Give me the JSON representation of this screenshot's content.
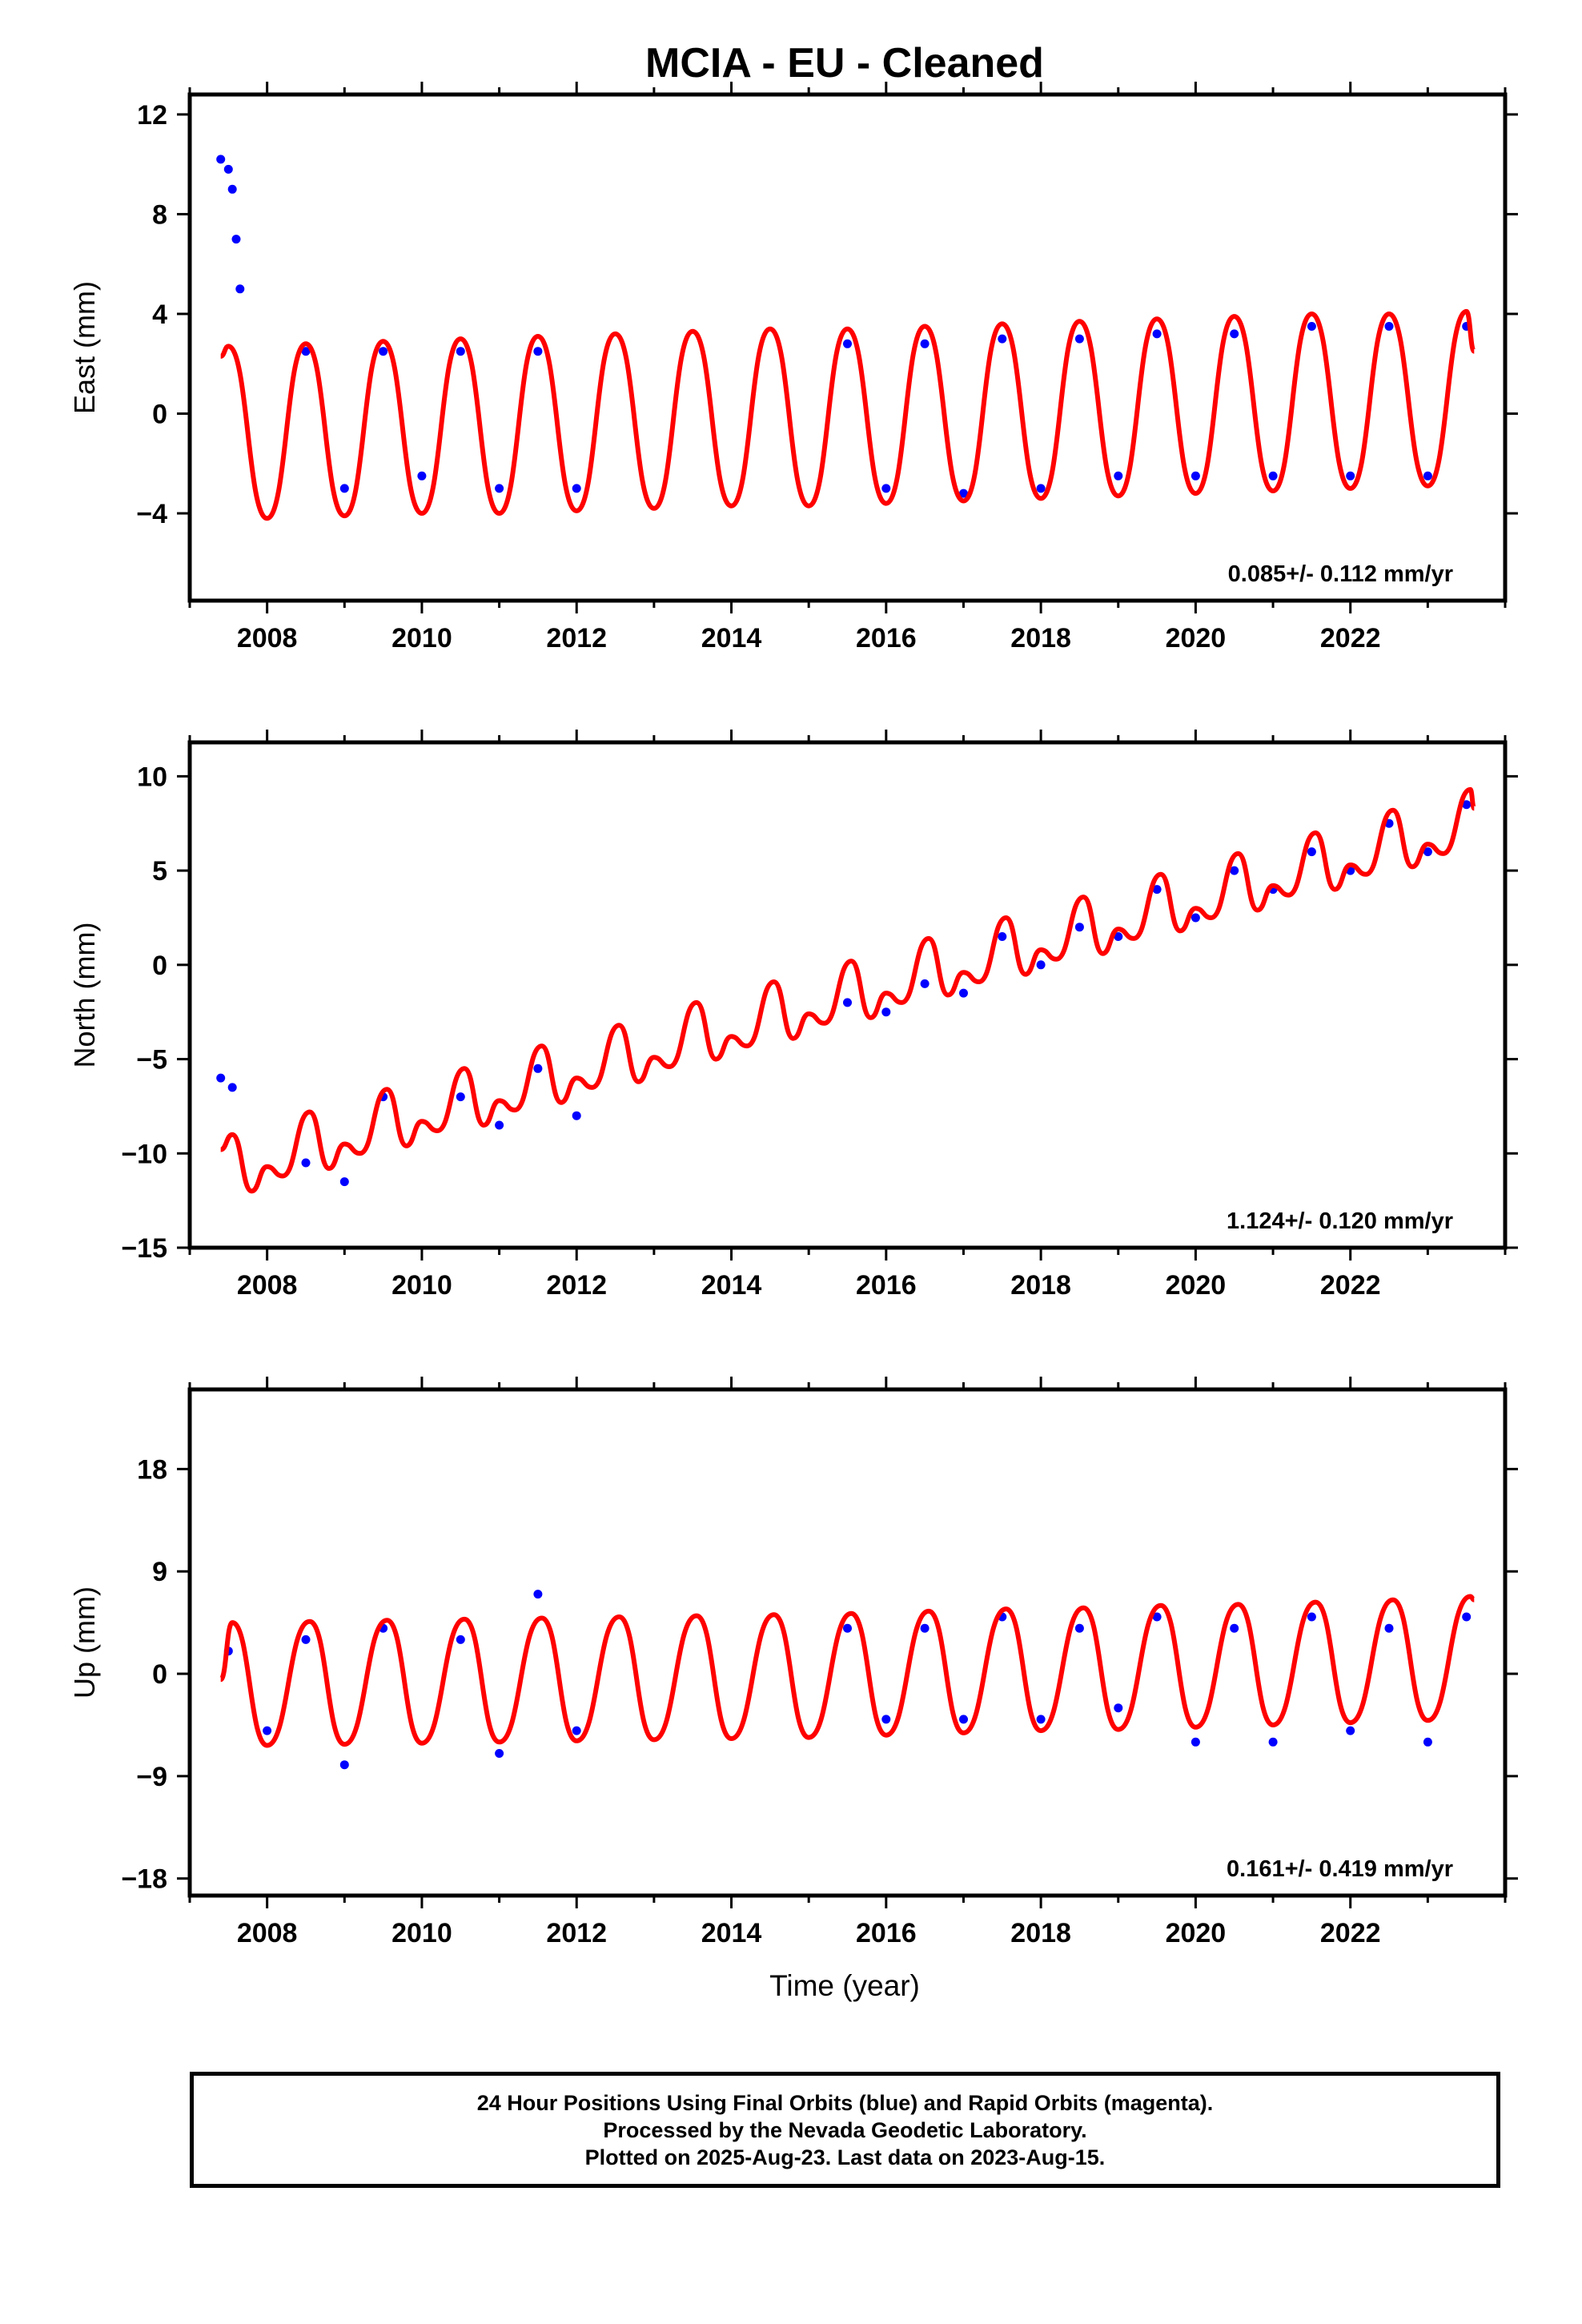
{
  "title": "MCIA  - EU - Cleaned",
  "xlabel": "Time (year)",
  "colors": {
    "data": "#0000ff",
    "model": "#ff0000",
    "frame": "#000000"
  },
  "footer": {
    "lines": [
      "24 Hour Positions Using Final Orbits (blue) and Rapid Orbits (magenta).",
      "Processed by the Nevada Geodetic Laboratory.",
      "Plotted on 2025-Aug-23. Last data on 2023-Aug-15."
    ]
  },
  "chart_data": [
    {
      "type": "scatter",
      "component": "east",
      "ylabel": "East (mm)",
      "xlim": [
        2007.0,
        2024.0
      ],
      "ylim": [
        -7.5,
        12.8
      ],
      "xticks": [
        2008,
        2010,
        2012,
        2014,
        2016,
        2018,
        2020,
        2022
      ],
      "yticks": [
        -4,
        0,
        4,
        8,
        12
      ],
      "yticklabels": [
        "−4",
        "0",
        "4",
        "8",
        "12"
      ],
      "rate_label": "0.085+/- 0.112 mm/yr",
      "series": [
        {
          "values": [
            [
              2007.4,
              10.2
            ],
            [
              2007.5,
              9.8
            ],
            [
              2007.55,
              9.0
            ],
            [
              2007.6,
              7.0
            ],
            [
              2007.65,
              5.0
            ],
            [
              2008.5,
              2.5
            ],
            [
              2009.0,
              -3.0
            ],
            [
              2009.5,
              2.5
            ],
            [
              2010.0,
              -2.5
            ],
            [
              2010.5,
              2.5
            ],
            [
              2011.0,
              -3.0
            ],
            [
              2011.5,
              2.5
            ],
            [
              2012.0,
              -3.0
            ],
            [
              2015.5,
              2.8
            ],
            [
              2016.0,
              -3.0
            ],
            [
              2016.5,
              2.8
            ],
            [
              2017.0,
              -3.2
            ],
            [
              2017.5,
              3.0
            ],
            [
              2018.0,
              -3.0
            ],
            [
              2018.5,
              3.0
            ],
            [
              2019.0,
              -2.5
            ],
            [
              2019.5,
              3.2
            ],
            [
              2020.0,
              -2.5
            ],
            [
              2020.5,
              3.2
            ],
            [
              2021.0,
              -2.5
            ],
            [
              2021.5,
              3.5
            ],
            [
              2022.0,
              -2.5
            ],
            [
              2022.5,
              3.5
            ],
            [
              2023.0,
              -2.5
            ],
            [
              2023.5,
              3.5
            ]
          ]
        },
        {
          "values": [
            [
              2007.4,
              2.3
            ],
            [
              2007.5,
              2.7
            ],
            [
              2008.0,
              -4.2
            ],
            [
              2008.5,
              2.8
            ],
            [
              2009.0,
              -4.1
            ],
            [
              2009.5,
              2.9
            ],
            [
              2010.0,
              -4.0
            ],
            [
              2010.5,
              3.0
            ],
            [
              2011.0,
              -4.0
            ],
            [
              2011.5,
              3.1
            ],
            [
              2012.0,
              -3.9
            ],
            [
              2012.5,
              3.2
            ],
            [
              2013.0,
              -3.8
            ],
            [
              2013.5,
              3.3
            ],
            [
              2014.0,
              -3.7
            ],
            [
              2014.5,
              3.4
            ],
            [
              2015.0,
              -3.7
            ],
            [
              2015.5,
              3.4
            ],
            [
              2016.0,
              -3.6
            ],
            [
              2016.5,
              3.5
            ],
            [
              2017.0,
              -3.5
            ],
            [
              2017.5,
              3.6
            ],
            [
              2018.0,
              -3.4
            ],
            [
              2018.5,
              3.7
            ],
            [
              2019.0,
              -3.3
            ],
            [
              2019.5,
              3.8
            ],
            [
              2020.0,
              -3.2
            ],
            [
              2020.5,
              3.9
            ],
            [
              2021.0,
              -3.1
            ],
            [
              2021.5,
              4.0
            ],
            [
              2022.0,
              -3.0
            ],
            [
              2022.5,
              4.0
            ],
            [
              2023.0,
              -2.9
            ],
            [
              2023.5,
              4.1
            ],
            [
              2023.6,
              2.5
            ]
          ]
        }
      ]
    },
    {
      "type": "scatter",
      "component": "north",
      "ylabel": "North (mm)",
      "xlim": [
        2007.0,
        2024.0
      ],
      "ylim": [
        -15,
        11.8
      ],
      "xticks": [
        2008,
        2010,
        2012,
        2014,
        2016,
        2018,
        2020,
        2022
      ],
      "yticks": [
        -15,
        -10,
        -5,
        0,
        5,
        10
      ],
      "yticklabels": [
        "−15",
        "−10",
        "−5",
        "0",
        "5",
        "10"
      ],
      "rate_label": "1.124+/- 0.120 mm/yr",
      "series": [
        {
          "values": [
            [
              2007.4,
              -6.0
            ],
            [
              2007.55,
              -6.5
            ],
            [
              2008.5,
              -10.5
            ],
            [
              2009.0,
              -11.5
            ],
            [
              2009.5,
              -7.0
            ],
            [
              2010.5,
              -7.0
            ],
            [
              2011.0,
              -8.5
            ],
            [
              2011.5,
              -5.5
            ],
            [
              2012.0,
              -8.0
            ],
            [
              2015.5,
              -2.0
            ],
            [
              2016.0,
              -2.5
            ],
            [
              2016.5,
              -1.0
            ],
            [
              2017.0,
              -1.5
            ],
            [
              2017.5,
              1.5
            ],
            [
              2018.0,
              0.0
            ],
            [
              2018.5,
              2.0
            ],
            [
              2019.0,
              1.5
            ],
            [
              2019.5,
              4.0
            ],
            [
              2020.0,
              2.5
            ],
            [
              2020.5,
              5.0
            ],
            [
              2021.0,
              4.0
            ],
            [
              2021.5,
              6.0
            ],
            [
              2022.0,
              5.0
            ],
            [
              2022.5,
              7.5
            ],
            [
              2023.0,
              6.0
            ],
            [
              2023.5,
              8.5
            ]
          ]
        },
        {
          "values": [
            [
              2007.4,
              -9.8
            ],
            [
              2007.55,
              -9.0
            ],
            [
              2007.8,
              -12.0
            ],
            [
              2008.0,
              -10.7
            ],
            [
              2008.2,
              -11.2
            ],
            [
              2008.55,
              -7.8
            ],
            [
              2008.8,
              -10.8
            ],
            [
              2009.0,
              -9.5
            ],
            [
              2009.2,
              -10.0
            ],
            [
              2009.55,
              -6.6
            ],
            [
              2009.8,
              -9.6
            ],
            [
              2010.0,
              -8.3
            ],
            [
              2010.2,
              -8.8
            ],
            [
              2010.55,
              -5.5
            ],
            [
              2010.8,
              -8.5
            ],
            [
              2011.0,
              -7.2
            ],
            [
              2011.2,
              -7.7
            ],
            [
              2011.55,
              -4.3
            ],
            [
              2011.8,
              -7.3
            ],
            [
              2012.0,
              -6.0
            ],
            [
              2012.2,
              -6.5
            ],
            [
              2012.55,
              -3.2
            ],
            [
              2012.8,
              -6.2
            ],
            [
              2013.0,
              -4.9
            ],
            [
              2013.2,
              -5.4
            ],
            [
              2013.55,
              -2.0
            ],
            [
              2013.8,
              -5.0
            ],
            [
              2014.0,
              -3.8
            ],
            [
              2014.2,
              -4.3
            ],
            [
              2014.55,
              -0.9
            ],
            [
              2014.8,
              -3.9
            ],
            [
              2015.0,
              -2.6
            ],
            [
              2015.2,
              -3.1
            ],
            [
              2015.55,
              0.2
            ],
            [
              2015.8,
              -2.8
            ],
            [
              2016.0,
              -1.5
            ],
            [
              2016.2,
              -2.0
            ],
            [
              2016.55,
              1.4
            ],
            [
              2016.8,
              -1.6
            ],
            [
              2017.0,
              -0.4
            ],
            [
              2017.2,
              -0.9
            ],
            [
              2017.55,
              2.5
            ],
            [
              2017.8,
              -0.5
            ],
            [
              2018.0,
              0.8
            ],
            [
              2018.2,
              0.3
            ],
            [
              2018.55,
              3.6
            ],
            [
              2018.8,
              0.6
            ],
            [
              2019.0,
              1.9
            ],
            [
              2019.2,
              1.4
            ],
            [
              2019.55,
              4.8
            ],
            [
              2019.8,
              1.8
            ],
            [
              2020.0,
              3.0
            ],
            [
              2020.2,
              2.5
            ],
            [
              2020.55,
              5.9
            ],
            [
              2020.8,
              2.9
            ],
            [
              2021.0,
              4.2
            ],
            [
              2021.2,
              3.7
            ],
            [
              2021.55,
              7.0
            ],
            [
              2021.8,
              4.0
            ],
            [
              2022.0,
              5.3
            ],
            [
              2022.2,
              4.8
            ],
            [
              2022.55,
              8.2
            ],
            [
              2022.8,
              5.2
            ],
            [
              2023.0,
              6.4
            ],
            [
              2023.2,
              5.9
            ],
            [
              2023.55,
              9.3
            ],
            [
              2023.6,
              8.3
            ]
          ]
        }
      ]
    },
    {
      "type": "scatter",
      "component": "up",
      "ylabel": "Up (mm)",
      "xlim": [
        2007.0,
        2024.0
      ],
      "ylim": [
        -19.5,
        25.0
      ],
      "xticks": [
        2008,
        2010,
        2012,
        2014,
        2016,
        2018,
        2020,
        2022
      ],
      "yticks": [
        -18,
        -9,
        0,
        9,
        18
      ],
      "yticklabels": [
        "−18",
        "−9",
        "0",
        "9",
        "18"
      ],
      "rate_label": "0.161+/- 0.419 mm/yr",
      "series": [
        {
          "values": [
            [
              2007.5,
              2.0
            ],
            [
              2008.0,
              -5.0
            ],
            [
              2008.5,
              3.0
            ],
            [
              2009.0,
              -8.0
            ],
            [
              2009.5,
              4.0
            ],
            [
              2010.5,
              3.0
            ],
            [
              2011.0,
              -7.0
            ],
            [
              2011.5,
              7.0
            ],
            [
              2012.0,
              -5.0
            ],
            [
              2015.5,
              4.0
            ],
            [
              2016.0,
              -4.0
            ],
            [
              2016.5,
              4.0
            ],
            [
              2017.0,
              -4.0
            ],
            [
              2017.5,
              5.0
            ],
            [
              2018.0,
              -4.0
            ],
            [
              2018.5,
              4.0
            ],
            [
              2019.0,
              -3.0
            ],
            [
              2019.5,
              5.0
            ],
            [
              2020.0,
              -6.0
            ],
            [
              2020.5,
              4.0
            ],
            [
              2021.0,
              -6.0
            ],
            [
              2021.5,
              5.0
            ],
            [
              2022.0,
              -5.0
            ],
            [
              2022.5,
              4.0
            ],
            [
              2023.0,
              -6.0
            ],
            [
              2023.5,
              5.0
            ]
          ]
        },
        {
          "values": [
            [
              2007.4,
              -0.5
            ],
            [
              2007.55,
              4.5
            ],
            [
              2008.0,
              -6.3
            ],
            [
              2008.55,
              4.6
            ],
            [
              2009.0,
              -6.2
            ],
            [
              2009.55,
              4.7
            ],
            [
              2010.0,
              -6.1
            ],
            [
              2010.55,
              4.8
            ],
            [
              2011.0,
              -6.0
            ],
            [
              2011.55,
              4.9
            ],
            [
              2012.0,
              -5.9
            ],
            [
              2012.55,
              5.0
            ],
            [
              2013.0,
              -5.8
            ],
            [
              2013.55,
              5.1
            ],
            [
              2014.0,
              -5.7
            ],
            [
              2014.55,
              5.2
            ],
            [
              2015.0,
              -5.6
            ],
            [
              2015.55,
              5.3
            ],
            [
              2016.0,
              -5.4
            ],
            [
              2016.55,
              5.5
            ],
            [
              2017.0,
              -5.2
            ],
            [
              2017.55,
              5.7
            ],
            [
              2018.0,
              -5.0
            ],
            [
              2018.55,
              5.8
            ],
            [
              2019.0,
              -4.9
            ],
            [
              2019.55,
              6.0
            ],
            [
              2020.0,
              -4.7
            ],
            [
              2020.55,
              6.1
            ],
            [
              2021.0,
              -4.5
            ],
            [
              2021.55,
              6.3
            ],
            [
              2022.0,
              -4.3
            ],
            [
              2022.55,
              6.5
            ],
            [
              2023.0,
              -4.1
            ],
            [
              2023.55,
              6.8
            ],
            [
              2023.6,
              6.5
            ]
          ]
        }
      ]
    }
  ]
}
